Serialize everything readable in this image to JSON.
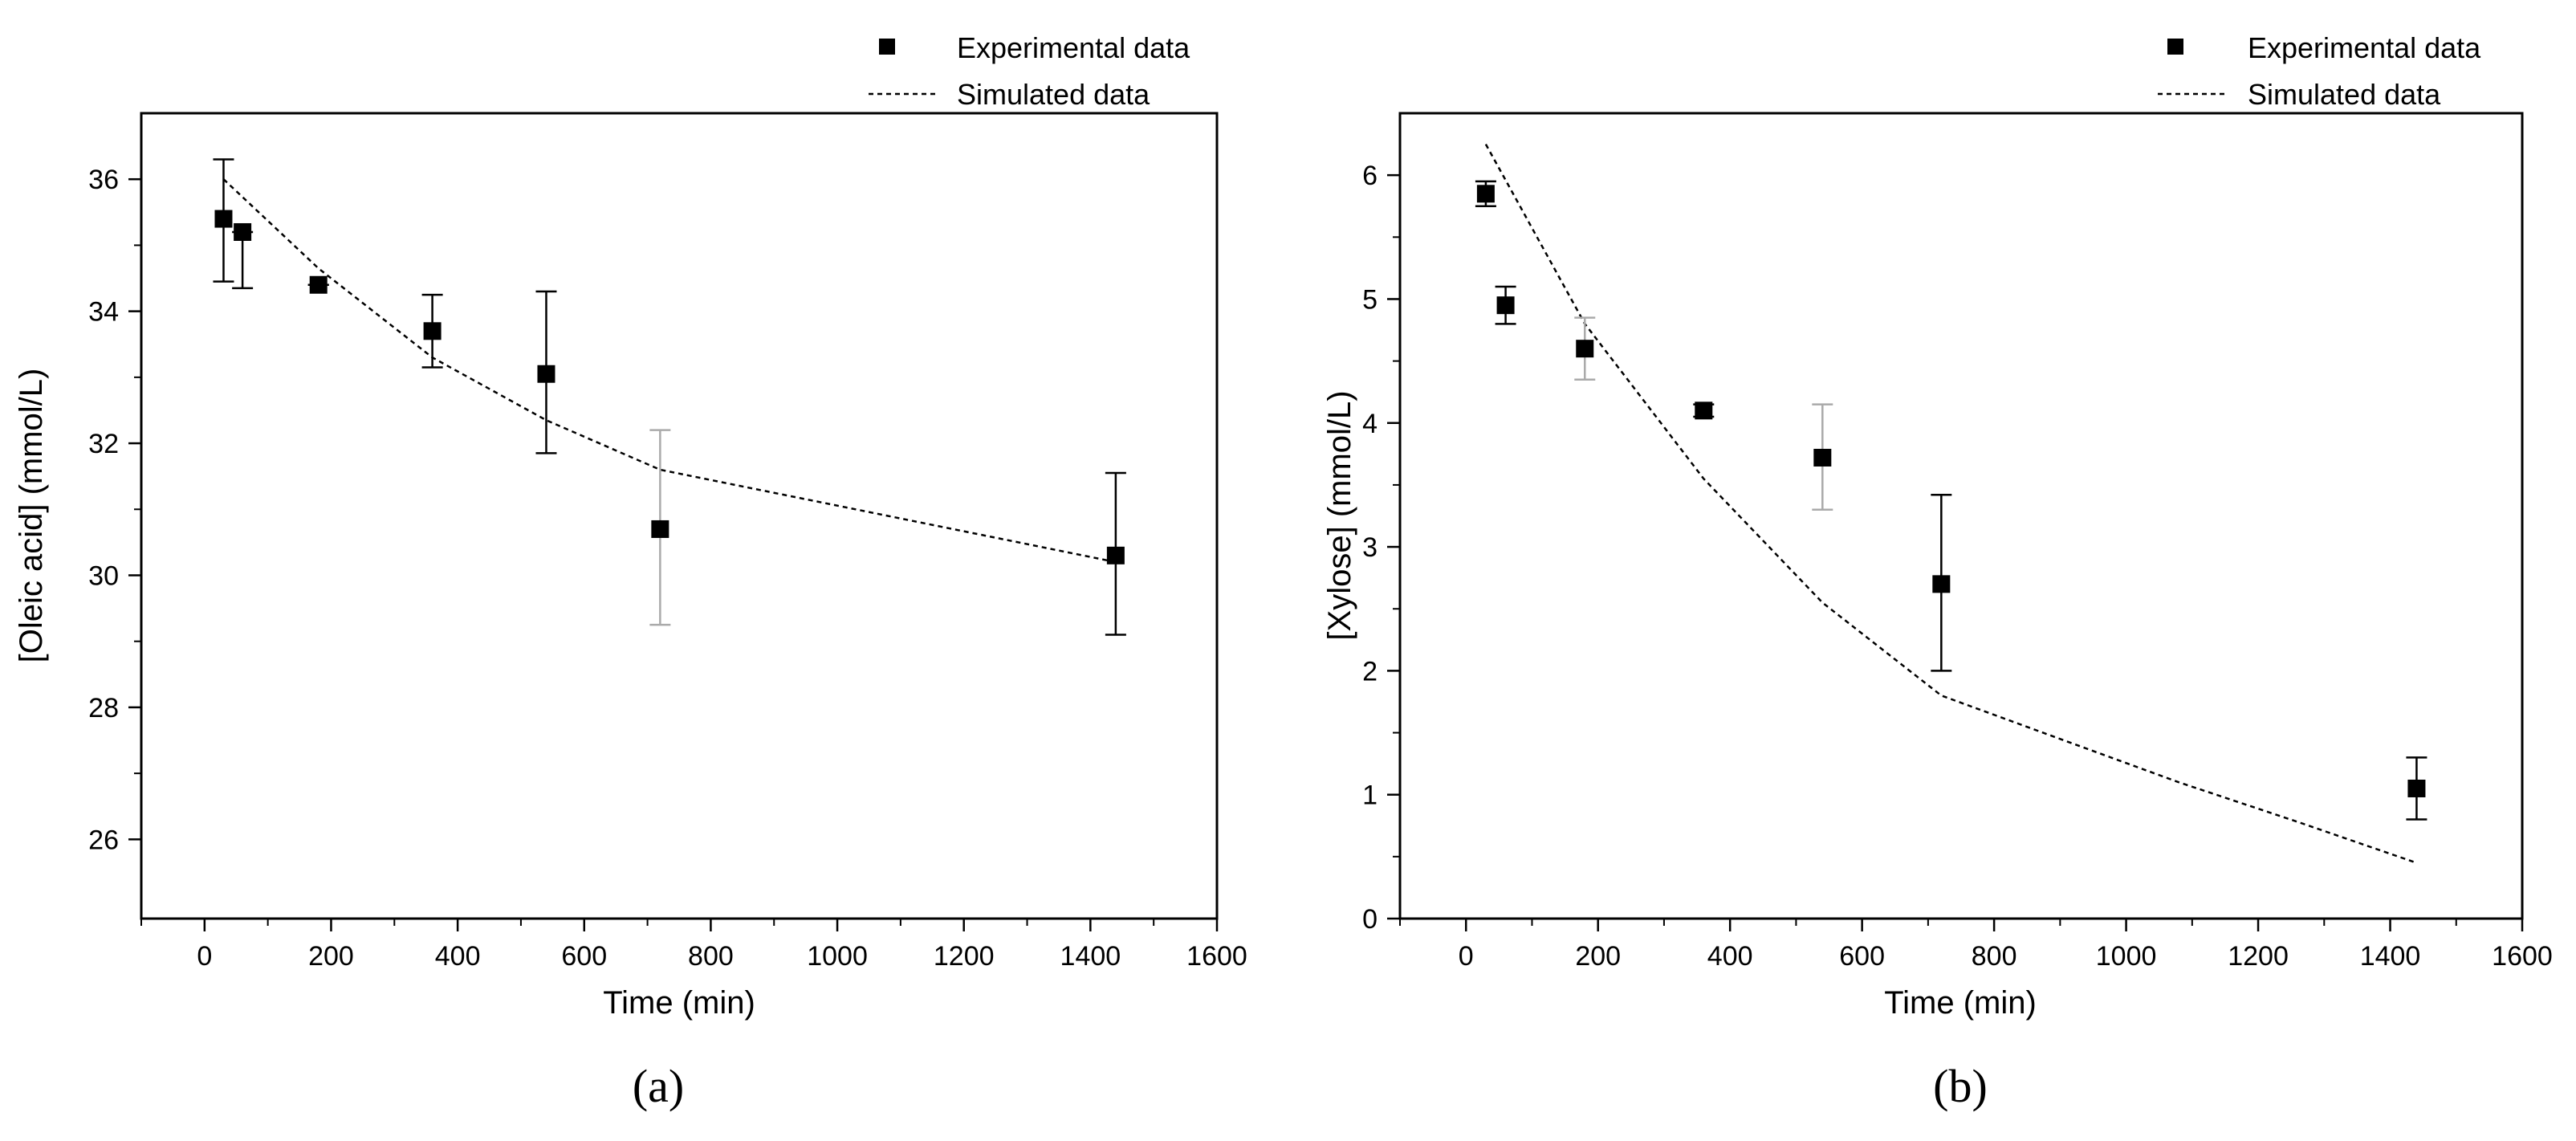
{
  "chart_data": [
    {
      "type": "scatter",
      "panel_label": "(a)",
      "xlabel": "Time (min)",
      "ylabel": "[Oleic acid] (mmol/L)",
      "xlim": [
        -100,
        1600
      ],
      "ylim": [
        24.8,
        37
      ],
      "xticks": [
        0,
        200,
        400,
        600,
        800,
        1000,
        1200,
        1400,
        1600
      ],
      "yticks": [
        26,
        28,
        30,
        32,
        34,
        36
      ],
      "legend": {
        "position": "top-right",
        "experimental_label": "Experimental data",
        "simulated_label": "Simulated data"
      },
      "series": [
        {
          "name": "Experimental data",
          "kind": "points",
          "x": [
            30,
            60,
            180,
            360,
            540,
            720,
            1440
          ],
          "y": [
            35.4,
            35.2,
            34.4,
            33.7,
            33.05,
            30.7,
            30.3
          ],
          "err_low": [
            34.45,
            34.35,
            34.4,
            33.15,
            31.85,
            29.25,
            29.1
          ],
          "err_high": [
            36.3,
            35.2,
            34.4,
            34.25,
            34.3,
            32.2,
            31.55
          ],
          "err_color": [
            "#000000",
            "#000000",
            "#000000",
            "#000000",
            "#000000",
            "#aaaaaa",
            "#000000"
          ]
        },
        {
          "name": "Simulated data",
          "kind": "dashed-line",
          "x": [
            30,
            180,
            360,
            540,
            720,
            1440
          ],
          "y": [
            36.0,
            34.65,
            33.3,
            32.35,
            31.6,
            30.2
          ]
        }
      ]
    },
    {
      "type": "scatter",
      "panel_label": "(b)",
      "xlabel": "Time (min)",
      "ylabel": "[Xylose] (mmol/L)",
      "xlim": [
        -100,
        1600
      ],
      "ylim": [
        0,
        6.5
      ],
      "xticks": [
        0,
        200,
        400,
        600,
        800,
        1000,
        1200,
        1400,
        1600
      ],
      "yticks": [
        0,
        1,
        2,
        3,
        4,
        5,
        6
      ],
      "legend": {
        "position": "top-right",
        "experimental_label": "Experimental data",
        "simulated_label": "Simulated data"
      },
      "series": [
        {
          "name": "Experimental data",
          "kind": "points",
          "x": [
            30,
            60,
            180,
            360,
            540,
            720,
            1440
          ],
          "y": [
            5.85,
            4.95,
            4.6,
            4.1,
            3.72,
            2.7,
            1.05
          ],
          "err_low": [
            5.75,
            4.8,
            4.35,
            4.05,
            3.3,
            2.0,
            0.8
          ],
          "err_high": [
            5.95,
            5.1,
            4.85,
            4.15,
            4.15,
            3.42,
            1.3
          ],
          "err_color": [
            "#000000",
            "#000000",
            "#aaaaaa",
            "#000000",
            "#aaaaaa",
            "#000000",
            "#000000"
          ]
        },
        {
          "name": "Simulated data",
          "kind": "dashed-line",
          "x": [
            30,
            180,
            360,
            540,
            720,
            900,
            1080,
            1260,
            1440
          ],
          "y": [
            6.25,
            4.8,
            3.55,
            2.55,
            1.8,
            1.45,
            1.1,
            0.78,
            0.45
          ]
        }
      ]
    }
  ]
}
